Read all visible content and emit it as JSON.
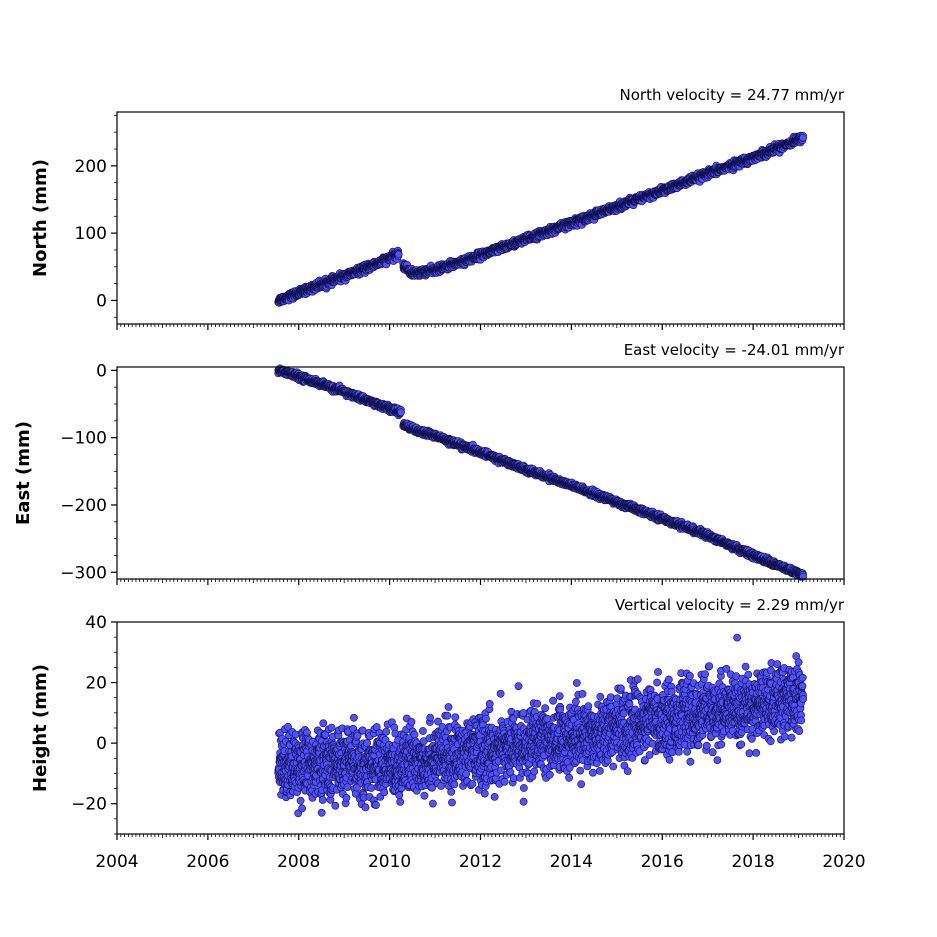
{
  "chart_data": [
    {
      "type": "scatter",
      "title": "North velocity = 24.77 mm/yr",
      "xlabel": "",
      "ylabel": "North (mm)",
      "xlim": [
        2004,
        2020
      ],
      "ylim": [
        -35,
        280
      ],
      "yticks": [
        0,
        100,
        200
      ],
      "yticklabels": [
        "0",
        "100",
        "200"
      ],
      "xticks": [
        2004,
        2006,
        2008,
        2010,
        2012,
        2014,
        2016,
        2018,
        2020
      ],
      "xticklabels": [],
      "grid": false,
      "marker_color": "#5050ff",
      "edge_color": "#10104a",
      "series": [
        {
          "segments": [
            {
              "x": [
                2007.55,
                2008.0,
                2008.5,
                2009.0,
                2009.5,
                2010.2
              ],
              "y": [
                0,
                11.2,
                23.6,
                36.0,
                48.4,
                68.5
              ]
            },
            {
              "x": [
                2010.3,
                2010.5,
                2011.0,
                2012.0,
                2013.0,
                2014.0,
                2015.0,
                2016.0,
                2017.0,
                2018.0,
                2019.1
              ],
              "y": [
                52,
                40,
                45,
                67,
                91,
                115,
                139,
                163,
                188,
                212,
                242
              ]
            }
          ],
          "noise": 2.5
        }
      ]
    },
    {
      "type": "scatter",
      "title": "East velocity = -24.01 mm/yr",
      "xlabel": "",
      "ylabel": "East (mm)",
      "xlim": [
        2004,
        2020
      ],
      "ylim": [
        -310,
        5
      ],
      "yticks": [
        0,
        -100,
        -200,
        -300
      ],
      "yticklabels": [
        "0",
        "−100",
        "−200",
        "−300"
      ],
      "xticks": [
        2004,
        2006,
        2008,
        2010,
        2012,
        2014,
        2016,
        2018,
        2020
      ],
      "xticklabels": [],
      "grid": false,
      "marker_color": "#5050ff",
      "edge_color": "#10104a",
      "series": [
        {
          "segments": [
            {
              "x": [
                2007.55,
                2008.0,
                2009.0,
                2010.25
              ],
              "y": [
                0,
                -9,
                -32,
                -63
              ]
            },
            {
              "x": [
                2010.3,
                2010.6,
                2011.0,
                2012.0,
                2013.0,
                2014.0,
                2015.0,
                2016.0,
                2017.0,
                2018.0,
                2019.1
              ],
              "y": [
                -80,
                -90,
                -97,
                -122,
                -147,
                -171,
                -196,
                -220,
                -245,
                -275,
                -305
              ]
            }
          ],
          "noise": 2.0
        }
      ]
    },
    {
      "type": "scatter",
      "title": "Vertical velocity = 2.29 mm/yr",
      "xlabel": "",
      "ylabel": "Height (mm)",
      "xlim": [
        2004,
        2020
      ],
      "ylim": [
        -30,
        40
      ],
      "yticks": [
        -20,
        0,
        20,
        40
      ],
      "yticklabels": [
        "−20",
        "0",
        "20",
        "40"
      ],
      "xticks": [
        2004,
        2006,
        2008,
        2010,
        2012,
        2014,
        2016,
        2018,
        2020
      ],
      "xticklabels": [
        "2004",
        "2006",
        "2008",
        "2010",
        "2012",
        "2014",
        "2016",
        "2018",
        "2020"
      ],
      "grid": false,
      "marker_color": "#5050ff",
      "edge_color": "#10104a",
      "series": [
        {
          "segments": [
            {
              "x": [
                2007.55,
                2010.0,
                2012.0,
                2014.0,
                2016.0,
                2018.0,
                2019.1
              ],
              "y": [
                -7,
                -7,
                -3,
                2,
                8,
                12,
                15
              ]
            }
          ],
          "noise": 5.5
        }
      ]
    }
  ]
}
